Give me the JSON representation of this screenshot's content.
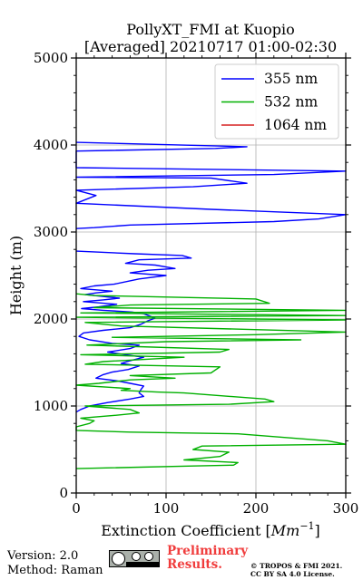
{
  "chart_data": {
    "type": "line",
    "title": "PollyXT_FMI at Kuopio",
    "subtitle": "[Averaged] 20210717 01:00-02:30",
    "xlabel_text": "Extinction Coefficient [",
    "xlabel_unit": "Mm",
    "xlabel_exp": "−1",
    "xlabel_close": "]",
    "ylabel": "Height (m)",
    "xlim": [
      0,
      300
    ],
    "ylim": [
      0,
      5000
    ],
    "xticks": [
      0,
      100,
      200,
      300
    ],
    "yticks": [
      0,
      1000,
      2000,
      3000,
      4000,
      5000
    ],
    "grid": true,
    "legend_position": "top-right",
    "series": [
      {
        "name": "355 nm",
        "color": "#0000ff",
        "points": [
          [
            0,
            2780
          ],
          [
            65,
            2750
          ],
          [
            118,
            2730
          ],
          [
            128,
            2700
          ],
          [
            70,
            2680
          ],
          [
            55,
            2640
          ],
          [
            88,
            2620
          ],
          [
            110,
            2580
          ],
          [
            80,
            2560
          ],
          [
            60,
            2530
          ],
          [
            100,
            2500
          ],
          [
            70,
            2460
          ],
          [
            42,
            2400
          ],
          [
            20,
            2380
          ],
          [
            5,
            2350
          ],
          [
            40,
            2320
          ],
          [
            22,
            2300
          ],
          [
            10,
            2280
          ],
          [
            48,
            2240
          ],
          [
            30,
            2220
          ],
          [
            8,
            2200
          ],
          [
            45,
            2170
          ],
          [
            25,
            2140
          ],
          [
            6,
            2120
          ],
          [
            30,
            2100
          ],
          [
            62,
            2080
          ],
          [
            75,
            2060
          ],
          [
            88,
            2010
          ],
          [
            80,
            1980
          ],
          [
            72,
            1940
          ],
          [
            60,
            1900
          ],
          [
            30,
            1870
          ],
          [
            8,
            1840
          ],
          [
            3,
            1800
          ],
          [
            15,
            1760
          ],
          [
            40,
            1720
          ],
          [
            70,
            1700
          ],
          [
            60,
            1660
          ],
          [
            35,
            1620
          ],
          [
            55,
            1590
          ],
          [
            75,
            1560
          ],
          [
            60,
            1520
          ],
          [
            50,
            1490
          ],
          [
            70,
            1460
          ],
          [
            58,
            1420
          ],
          [
            40,
            1390
          ],
          [
            30,
            1360
          ],
          [
            22,
            1320
          ],
          [
            45,
            1290
          ],
          [
            60,
            1260
          ],
          [
            75,
            1230
          ],
          [
            72,
            1190
          ],
          [
            70,
            1150
          ],
          [
            75,
            1110
          ],
          [
            60,
            1080
          ],
          [
            35,
            1040
          ],
          [
            15,
            1000
          ],
          [
            5,
            960
          ],
          [
            0,
            930
          ]
        ],
        "upper_points": [
          [
            0,
            3040
          ],
          [
            20,
            3050
          ],
          [
            60,
            3080
          ],
          [
            220,
            3120
          ],
          [
            270,
            3150
          ],
          [
            300,
            3200
          ],
          [
            150,
            3260
          ],
          [
            0,
            3330
          ],
          [
            22,
            3420
          ],
          [
            0,
            3480
          ],
          [
            130,
            3520
          ],
          [
            190,
            3560
          ],
          [
            150,
            3620
          ],
          [
            0,
            3630
          ],
          [
            220,
            3660
          ],
          [
            300,
            3700
          ],
          [
            0,
            3740
          ],
          [
            0,
            3930
          ],
          [
            155,
            3960
          ],
          [
            190,
            3980
          ],
          [
            0,
            4030
          ]
        ]
      },
      {
        "name": "532 nm",
        "color": "#00b000",
        "points": [
          [
            0,
            2290
          ],
          [
            20,
            2270
          ],
          [
            200,
            2230
          ],
          [
            215,
            2180
          ],
          [
            60,
            2160
          ],
          [
            20,
            2130
          ],
          [
            300,
            2100
          ],
          [
            5,
            2070
          ],
          [
            300,
            2040
          ],
          [
            0,
            2020
          ],
          [
            300,
            1990
          ],
          [
            10,
            1960
          ],
          [
            50,
            1920
          ],
          [
            300,
            1850
          ],
          [
            200,
            1820
          ],
          [
            40,
            1790
          ],
          [
            250,
            1760
          ],
          [
            100,
            1740
          ],
          [
            12,
            1700
          ],
          [
            170,
            1650
          ],
          [
            160,
            1620
          ],
          [
            5,
            1590
          ],
          [
            120,
            1560
          ],
          [
            30,
            1510
          ],
          [
            10,
            1480
          ],
          [
            160,
            1450
          ],
          [
            150,
            1380
          ],
          [
            60,
            1350
          ],
          [
            110,
            1320
          ],
          [
            60,
            1300
          ],
          [
            25,
            1260
          ],
          [
            0,
            1240
          ],
          [
            60,
            1200
          ],
          [
            50,
            1180
          ],
          [
            90,
            1160
          ],
          [
            120,
            1150
          ],
          [
            210,
            1080
          ],
          [
            220,
            1050
          ],
          [
            170,
            1020
          ],
          [
            10,
            1000
          ],
          [
            60,
            960
          ],
          [
            70,
            920
          ],
          [
            40,
            890
          ],
          [
            5,
            860
          ],
          [
            20,
            830
          ],
          [
            15,
            800
          ],
          [
            0,
            760
          ],
          [
            0,
            720
          ],
          [
            60,
            700
          ],
          [
            180,
            680
          ],
          [
            230,
            640
          ],
          [
            280,
            600
          ],
          [
            300,
            560
          ],
          [
            140,
            540
          ],
          [
            130,
            500
          ],
          [
            170,
            470
          ],
          [
            160,
            420
          ],
          [
            120,
            380
          ],
          [
            180,
            350
          ],
          [
            175,
            320
          ],
          [
            130,
            310
          ],
          [
            0,
            280
          ]
        ]
      },
      {
        "name": "1064 nm",
        "color": "#d62020",
        "points": []
      }
    ]
  },
  "footer": {
    "version": "Version: 2.0",
    "method": "Method: Raman",
    "preliminary_line1": "Preliminary",
    "preliminary_line2": "Results.",
    "copyright_line1": "© TROPOS & FMI 2021.",
    "copyright_line2": "CC BY SA 4.0 License."
  }
}
